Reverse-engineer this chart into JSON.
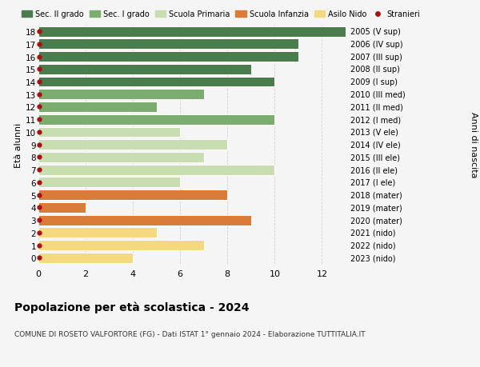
{
  "ages": [
    18,
    17,
    16,
    15,
    14,
    13,
    12,
    11,
    10,
    9,
    8,
    7,
    6,
    5,
    4,
    3,
    2,
    1,
    0
  ],
  "right_labels": [
    "2005 (V sup)",
    "2006 (IV sup)",
    "2007 (III sup)",
    "2008 (II sup)",
    "2009 (I sup)",
    "2010 (III med)",
    "2011 (II med)",
    "2012 (I med)",
    "2013 (V ele)",
    "2014 (IV ele)",
    "2015 (III ele)",
    "2016 (II ele)",
    "2017 (I ele)",
    "2018 (mater)",
    "2019 (mater)",
    "2020 (mater)",
    "2021 (nido)",
    "2022 (nido)",
    "2023 (nido)"
  ],
  "values": [
    13,
    11,
    11,
    9,
    10,
    7,
    5,
    10,
    6,
    8,
    7,
    10,
    6,
    8,
    2,
    9,
    5,
    7,
    4
  ],
  "bar_colors": [
    "#4a7c4e",
    "#4a7c4e",
    "#4a7c4e",
    "#4a7c4e",
    "#4a7c4e",
    "#7aad6e",
    "#7aad6e",
    "#7aad6e",
    "#c8ddb0",
    "#c8ddb0",
    "#c8ddb0",
    "#c8ddb0",
    "#c8ddb0",
    "#d97c3a",
    "#d97c3a",
    "#d97c3a",
    "#f5d980",
    "#f5d980",
    "#f5d980"
  ],
  "stranieri_color": "#aa1111",
  "legend_items": [
    {
      "label": "Sec. II grado",
      "color": "#4a7c4e"
    },
    {
      "label": "Sec. I grado",
      "color": "#7aad6e"
    },
    {
      "label": "Scuola Primaria",
      "color": "#c8ddb0"
    },
    {
      "label": "Scuola Infanzia",
      "color": "#d97c3a"
    },
    {
      "label": "Asilo Nido",
      "color": "#f5d980"
    },
    {
      "label": "Stranieri",
      "color": "#aa1111"
    }
  ],
  "title": "Popolazione per età scolastica - 2024",
  "subtitle": "COMUNE DI ROSETO VALFORTORE (FG) - Dati ISTAT 1° gennaio 2024 - Elaborazione TUTTITALIA.IT",
  "ylabel_left": "Età alunni",
  "ylabel_right": "Anni di nascita",
  "xlim": [
    0,
    13
  ],
  "xticks": [
    0,
    2,
    4,
    6,
    8,
    10,
    12
  ],
  "background_color": "#f5f5f5",
  "bar_edge_color": "white",
  "grid_color": "#cccccc"
}
